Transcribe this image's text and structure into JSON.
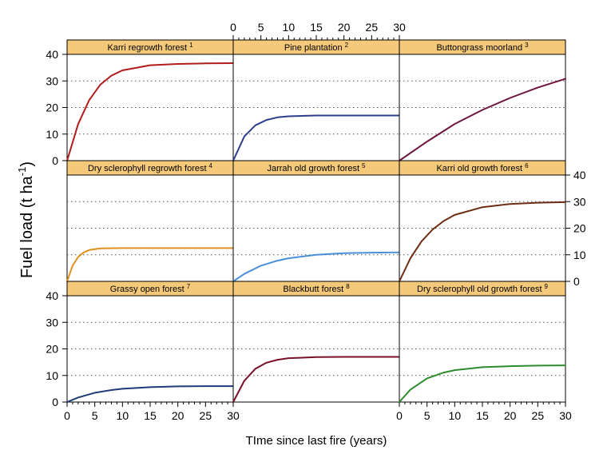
{
  "chart_data": {
    "type": "line",
    "layout": "3x3 trellis",
    "xlabel": "TIme since last fire (years)",
    "ylabel": "Fuel load (t ha",
    "ylabel_superscript": "-1",
    "ylabel_suffix": ")",
    "xlim": [
      0,
      30
    ],
    "ylim": [
      0,
      40
    ],
    "x_ticks": [
      0,
      5,
      10,
      15,
      20,
      25,
      30
    ],
    "y_ticks": [
      0,
      10,
      20,
      30,
      40
    ],
    "grid": "dotted horizontal",
    "strip_color": "#f5c97a",
    "panels": [
      {
        "title": "Karri regrowth forest",
        "sup": "1",
        "color": "#b01c1c",
        "x": [
          0,
          2,
          4,
          6,
          8,
          10,
          15,
          20,
          25,
          30
        ],
        "y": [
          0,
          13.8,
          22.8,
          28.6,
          32.0,
          34.0,
          35.9,
          36.4,
          36.6,
          36.7
        ]
      },
      {
        "title": "Pine plantation",
        "sup": "2",
        "color": "#2b3e8c",
        "x": [
          0,
          2,
          4,
          6,
          8,
          10,
          15,
          20,
          25,
          30
        ],
        "y": [
          0,
          9.1,
          13.3,
          15.3,
          16.3,
          16.7,
          17.0,
          17.0,
          17.0,
          17.0
        ]
      },
      {
        "title": "Buttongrass moorland",
        "sup": "3",
        "color": "#6e1540",
        "x": [
          0,
          5,
          10,
          15,
          20,
          25,
          30
        ],
        "y": [
          0,
          7.2,
          13.8,
          19.1,
          23.6,
          27.5,
          30.8
        ]
      },
      {
        "title": "Dry sclerophyll regrowth forest",
        "sup": "4",
        "color": "#e0901e",
        "x": [
          0,
          1,
          2,
          3,
          4,
          6,
          10,
          15,
          20,
          25,
          30
        ],
        "y": [
          0,
          5.9,
          9.2,
          10.9,
          11.8,
          12.4,
          12.5,
          12.5,
          12.5,
          12.5,
          12.5
        ]
      },
      {
        "title": "Jarrah old growth forest",
        "sup": "5",
        "color": "#4a8fd8",
        "x": [
          0,
          2,
          5,
          8,
          10,
          15,
          20,
          25,
          30
        ],
        "y": [
          0,
          2.8,
          5.9,
          7.8,
          8.7,
          10.0,
          10.6,
          10.8,
          10.9
        ]
      },
      {
        "title": "Karri old growth forest",
        "sup": "6",
        "color": "#6b2e12",
        "x": [
          0,
          2,
          4,
          6,
          8,
          10,
          15,
          20,
          25,
          30
        ],
        "y": [
          0,
          8.7,
          15.0,
          19.5,
          22.7,
          25.0,
          27.9,
          29.1,
          29.6,
          29.8
        ]
      },
      {
        "title": "Grassy open forest",
        "sup": "7",
        "color": "#1f3a78",
        "x": [
          0,
          2,
          5,
          8,
          10,
          15,
          20,
          25,
          30
        ],
        "y": [
          0,
          1.7,
          3.5,
          4.5,
          5.0,
          5.6,
          5.9,
          6.0,
          6.0
        ]
      },
      {
        "title": "Blackbutt forest",
        "sup": "8",
        "color": "#7a1028",
        "x": [
          0,
          2,
          4,
          6,
          8,
          10,
          15,
          20,
          25,
          30
        ],
        "y": [
          0,
          8.0,
          12.5,
          14.8,
          15.9,
          16.5,
          16.9,
          17.0,
          17.0,
          17.0
        ]
      },
      {
        "title": "Dry sclerophyll old growth forest",
        "sup": "9",
        "color": "#2e8b2e",
        "x": [
          0,
          2,
          5,
          8,
          10,
          15,
          20,
          25,
          30
        ],
        "y": [
          0,
          4.7,
          8.9,
          11.1,
          12.0,
          13.1,
          13.5,
          13.7,
          13.8
        ]
      }
    ]
  }
}
